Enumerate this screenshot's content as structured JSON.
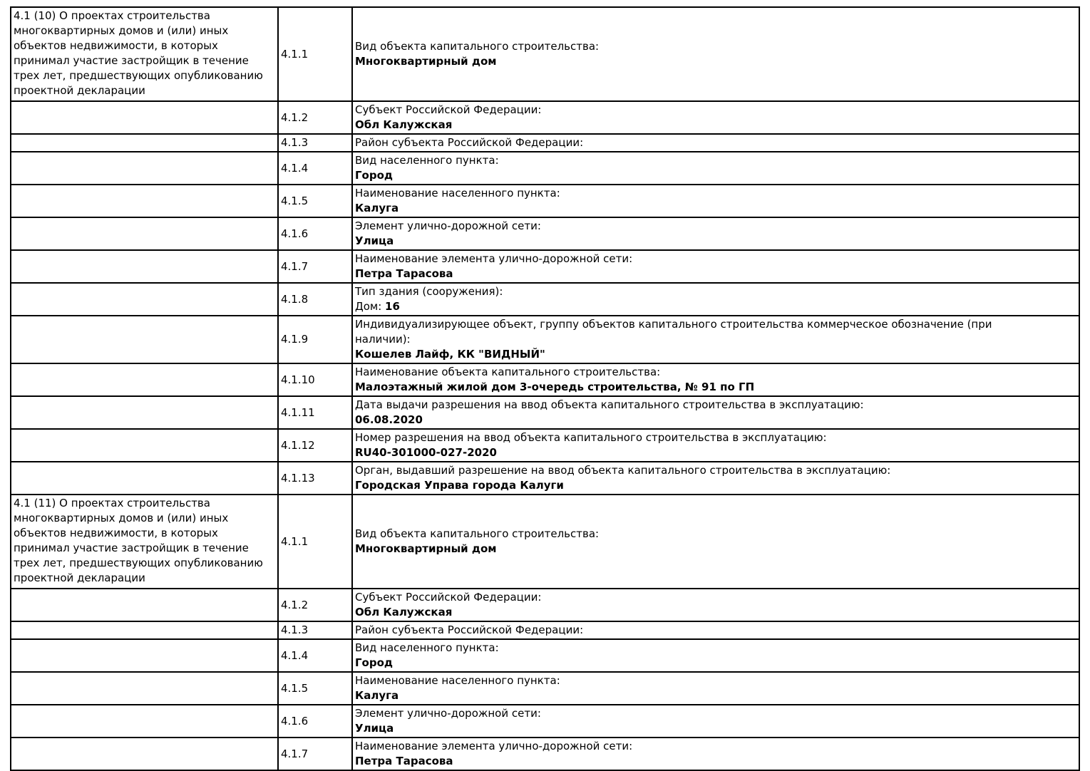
{
  "colors": {
    "border": "#000000",
    "text": "#000000",
    "page_background": "#ffffff"
  },
  "sections": [
    {
      "description": "4.1 (10) О проектах строительства многоквартирных домов и (или) иных объектов недвижимости, в которых принимал участие застройщик в течение трех лет, предшествующих опубликованию проектной декларации",
      "rows": [
        {
          "num": "4.1.1",
          "label": "Вид объекта капитального строительства:",
          "value": "Многоквартирный дом"
        },
        {
          "num": "4.1.2",
          "label": "Субъект Российской Федерации:",
          "value": "Обл Калужская"
        },
        {
          "num": "4.1.3",
          "label": "Район субъекта Российской Федерации:",
          "value": ""
        },
        {
          "num": "4.1.4",
          "label": "Вид населенного пункта:",
          "value": "Город"
        },
        {
          "num": "4.1.5",
          "label": "Наименование населенного пункта:",
          "value": "Калуга"
        },
        {
          "num": "4.1.6",
          "label": "Элемент улично-дорожной сети:",
          "value": "Улица"
        },
        {
          "num": "4.1.7",
          "label": "Наименование элемента улично-дорожной сети:",
          "value": "Петра Тарасова"
        },
        {
          "num": "4.1.8",
          "label": "Тип здания (сооружения):",
          "value_prefix": "Дом: ",
          "value": "16"
        },
        {
          "num": "4.1.9",
          "label": "Индивидуализирующее объект, группу объектов капитального строительства коммерческое обозначение (при наличии):",
          "value": "Кошелев Лайф, КК \"ВИДНЫЙ\""
        },
        {
          "num": "4.1.10",
          "label": "Наименование объекта капитального строительства:",
          "value": "Малоэтажный жилой дом 3-очередь строительства, № 91 по ГП"
        },
        {
          "num": "4.1.11",
          "label": "Дата выдачи разрешения на ввод объекта капитального строительства в эксплуатацию:",
          "value": "06.08.2020"
        },
        {
          "num": "4.1.12",
          "label": "Номер разрешения на ввод объекта капитального строительства в эксплуатацию:",
          "value": "RU40-301000-027-2020"
        },
        {
          "num": "4.1.13",
          "label": "Орган, выдавший разрешение на ввод объекта капитального строительства в эксплуатацию:",
          "value": "Городская Управа города Калуги"
        }
      ]
    },
    {
      "description": "4.1 (11) О проектах строительства многоквартирных домов и (или) иных объектов недвижимости, в которых принимал участие застройщик в течение трех лет, предшествующих опубликованию проектной декларации",
      "rows": [
        {
          "num": "4.1.1",
          "label": "Вид объекта капитального строительства:",
          "value": "Многоквартирный дом"
        },
        {
          "num": "4.1.2",
          "label": "Субъект Российской Федерации:",
          "value": "Обл Калужская"
        },
        {
          "num": "4.1.3",
          "label": "Район субъекта Российской Федерации:",
          "value": ""
        },
        {
          "num": "4.1.4",
          "label": "Вид населенного пункта:",
          "value": "Город"
        },
        {
          "num": "4.1.5",
          "label": "Наименование населенного пункта:",
          "value": "Калуга"
        },
        {
          "num": "4.1.6",
          "label": "Элемент улично-дорожной сети:",
          "value": "Улица"
        },
        {
          "num": "4.1.7",
          "label": "Наименование элемента улично-дорожной сети:",
          "value": "Петра Тарасова"
        }
      ]
    }
  ]
}
